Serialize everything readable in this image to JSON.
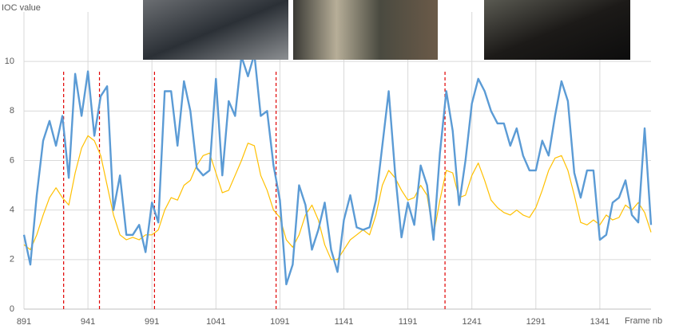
{
  "chart_data": {
    "type": "line",
    "y_label": "IOC value",
    "x_label": "Frame nb",
    "xlim": [
      891,
      1381
    ],
    "ylim": [
      0,
      12
    ],
    "xticks": [
      891,
      941,
      991,
      1041,
      1091,
      1141,
      1191,
      1241,
      1291,
      1341
    ],
    "yticks": [
      0,
      2,
      4,
      6,
      8,
      10
    ],
    "grid": true,
    "x": [
      891,
      896,
      901,
      906,
      911,
      916,
      921,
      926,
      931,
      936,
      941,
      946,
      951,
      956,
      961,
      966,
      971,
      976,
      981,
      986,
      991,
      996,
      1001,
      1006,
      1011,
      1016,
      1021,
      1026,
      1031,
      1036,
      1041,
      1046,
      1051,
      1056,
      1061,
      1066,
      1071,
      1076,
      1081,
      1086,
      1091,
      1096,
      1101,
      1106,
      1111,
      1116,
      1121,
      1126,
      1131,
      1136,
      1141,
      1146,
      1151,
      1156,
      1161,
      1166,
      1171,
      1176,
      1181,
      1186,
      1191,
      1196,
      1201,
      1206,
      1211,
      1216,
      1221,
      1226,
      1231,
      1236,
      1241,
      1246,
      1251,
      1256,
      1261,
      1266,
      1271,
      1276,
      1281,
      1286,
      1291,
      1296,
      1301,
      1306,
      1311,
      1316,
      1321,
      1326,
      1331,
      1336,
      1341,
      1346,
      1351,
      1356,
      1361,
      1366,
      1371,
      1376,
      1381
    ],
    "series": [
      {
        "color": "#5b9bd5",
        "width": 2.4,
        "values": [
          3.0,
          1.8,
          4.6,
          6.8,
          7.6,
          6.6,
          7.8,
          5.3,
          9.5,
          7.8,
          9.6,
          7.0,
          8.6,
          9.0,
          4.0,
          5.4,
          3.0,
          3.0,
          3.4,
          2.3,
          4.3,
          3.5,
          8.8,
          8.8,
          6.6,
          9.2,
          8.0,
          5.7,
          5.4,
          5.6,
          9.3,
          5.4,
          8.4,
          7.8,
          10.2,
          9.4,
          10.3,
          7.8,
          8.0,
          5.8,
          4.4,
          1.0,
          1.8,
          5.0,
          4.2,
          2.4,
          3.2,
          4.3,
          2.4,
          1.5,
          3.6,
          4.6,
          3.3,
          3.2,
          3.3,
          4.4,
          6.6,
          8.8,
          5.5,
          2.9,
          4.3,
          3.4,
          5.8,
          5.0,
          2.8,
          6.3,
          8.8,
          7.2,
          4.2,
          6.0,
          8.3,
          9.3,
          8.8,
          8.0,
          7.5,
          7.5,
          6.6,
          7.3,
          6.2,
          5.6,
          5.6,
          6.8,
          6.2,
          7.8,
          9.2,
          8.4,
          5.5,
          4.5,
          5.6,
          5.6,
          2.8,
          3.0,
          4.3,
          4.5,
          5.2,
          3.8,
          3.5,
          7.3,
          3.4
        ]
      },
      {
        "color": "#ffc000",
        "width": 1.2,
        "values": [
          2.6,
          2.4,
          3.0,
          3.8,
          4.5,
          4.9,
          4.5,
          4.2,
          5.5,
          6.5,
          7.0,
          6.8,
          6.2,
          5.0,
          3.8,
          3.0,
          2.8,
          2.9,
          2.8,
          3.0,
          3.0,
          3.2,
          4.0,
          4.5,
          4.4,
          5.0,
          5.2,
          5.8,
          6.2,
          6.3,
          5.5,
          4.7,
          4.8,
          5.4,
          6.0,
          6.7,
          6.6,
          5.4,
          4.8,
          4.0,
          3.7,
          2.8,
          2.5,
          3.0,
          3.8,
          4.2,
          3.6,
          2.6,
          2.0,
          2.0,
          2.4,
          2.8,
          3.0,
          3.2,
          3.0,
          3.8,
          5.0,
          5.6,
          5.3,
          4.8,
          4.4,
          4.5,
          5.0,
          4.6,
          3.0,
          4.4,
          5.6,
          5.5,
          4.5,
          4.6,
          5.4,
          5.9,
          5.2,
          4.4,
          4.1,
          3.9,
          3.8,
          4.0,
          3.8,
          3.7,
          4.1,
          4.8,
          5.6,
          6.1,
          6.2,
          5.6,
          4.6,
          3.5,
          3.4,
          3.6,
          3.4,
          3.8,
          3.6,
          3.7,
          4.2,
          4.0,
          4.3,
          3.9,
          3.1
        ]
      }
    ],
    "markers": {
      "color": "#e00000",
      "x": [
        922,
        950,
        993,
        1088,
        1220
      ]
    }
  }
}
